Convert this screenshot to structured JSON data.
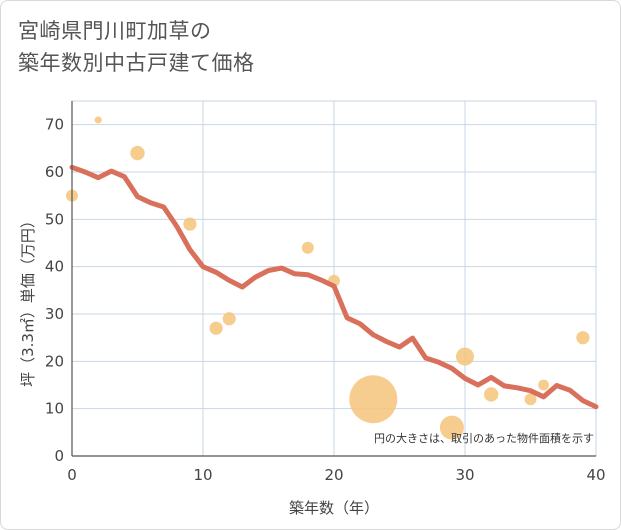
{
  "chart_data": {
    "type": "scatter",
    "title_line1": "宮崎県門川町加草の",
    "title_line2": "築年数別中古戸建て価格",
    "xlabel": "築年数（年）",
    "ylabel": "坪（3.3㎡）単価（万円）",
    "xlim": [
      0,
      40
    ],
    "ylim": [
      0,
      75
    ],
    "xticks": [
      0,
      10,
      20,
      30,
      40
    ],
    "yticks": [
      0,
      10,
      20,
      30,
      40,
      50,
      60,
      70
    ],
    "grid": true,
    "note": "円の大きさは、取引のあった物件面積を示す",
    "colors": {
      "bubble": "#f4c47a",
      "line": "#d9705c",
      "grid": "#c8d6e4",
      "axis": "#555555"
    },
    "scatter": [
      {
        "x": 0,
        "y": 55,
        "size": 1.0
      },
      {
        "x": 2,
        "y": 71,
        "size": 0.6
      },
      {
        "x": 5,
        "y": 64,
        "size": 1.2
      },
      {
        "x": 9,
        "y": 49,
        "size": 1.1
      },
      {
        "x": 11,
        "y": 27,
        "size": 1.1
      },
      {
        "x": 12,
        "y": 29,
        "size": 1.1
      },
      {
        "x": 18,
        "y": 44,
        "size": 1.0
      },
      {
        "x": 20,
        "y": 37,
        "size": 1.0
      },
      {
        "x": 23,
        "y": 12,
        "size": 4.0
      },
      {
        "x": 29,
        "y": 6,
        "size": 2.0
      },
      {
        "x": 30,
        "y": 21,
        "size": 1.5
      },
      {
        "x": 32,
        "y": 13,
        "size": 1.2
      },
      {
        "x": 35,
        "y": 12,
        "size": 1.0
      },
      {
        "x": 36,
        "y": 15,
        "size": 0.9
      },
      {
        "x": 39,
        "y": 25,
        "size": 1.1
      }
    ],
    "line": {
      "x": [
        0,
        1,
        2,
        3,
        4,
        5,
        6,
        7,
        8,
        9,
        10,
        11,
        12,
        13,
        14,
        15,
        16,
        17,
        18,
        19,
        20,
        21,
        22,
        23,
        24,
        25,
        26,
        27,
        28,
        29,
        30,
        31,
        32,
        33,
        34,
        35,
        36,
        37,
        38,
        39,
        40
      ],
      "y": [
        61,
        60,
        58.8,
        60.2,
        59,
        54.8,
        53.5,
        52.6,
        48.5,
        43.6,
        40,
        38.8,
        37.1,
        35.7,
        37.8,
        39.2,
        39.7,
        38.5,
        38.3,
        37.2,
        35.9,
        29.2,
        27.9,
        25.6,
        24.2,
        23,
        24.9,
        20.7,
        19.8,
        18.5,
        16.4,
        15,
        16.6,
        14.8,
        14.4,
        13.8,
        12.5,
        14.9,
        13.9,
        11.7,
        10.4
      ]
    }
  }
}
